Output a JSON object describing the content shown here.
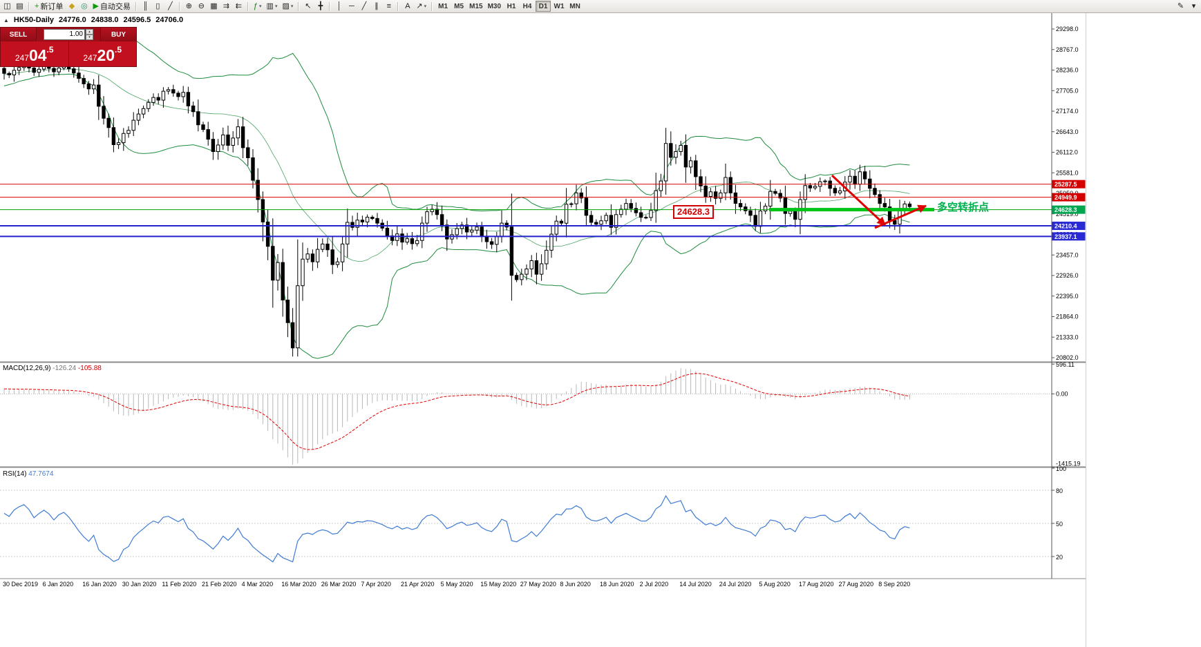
{
  "header": {
    "symbol": "HK50-Daily",
    "open": "24776.0",
    "high": "24838.0",
    "low": "24596.5",
    "close": "24706.0"
  },
  "trade_panel": {
    "collapse_icon": "▲",
    "sell_label": "SELL",
    "buy_label": "BUY",
    "volume": "1.00",
    "spin_up": "▴",
    "spin_down": "▾",
    "sell_price": "24704.5",
    "buy_price": "24720.5"
  },
  "toolbar": {
    "dropdown_glyph": "▾",
    "left_items": [
      {
        "name": "new-chart",
        "glyph": "◫"
      },
      {
        "name": "profiles",
        "glyph": "▤"
      },
      {
        "name": "sep"
      },
      {
        "name": "new-order",
        "glyph": "+",
        "label": "新订单",
        "glyph_color": "#0a9a0a"
      },
      {
        "name": "metaeditor",
        "glyph": "◆",
        "glyph_color": "#c9a11a"
      },
      {
        "name": "strategy-tester",
        "glyph": "◎",
        "glyph_color": "#2a8f6a"
      },
      {
        "name": "autotrading",
        "glyph": "▶",
        "label": "自动交易",
        "glyph_color": "#0a9a0a"
      },
      {
        "name": "sep"
      },
      {
        "name": "chart-bars",
        "glyph": "║"
      },
      {
        "name": "chart-candles",
        "glyph": "▯"
      },
      {
        "name": "chart-line",
        "glyph": "╱"
      },
      {
        "name": "sep"
      },
      {
        "name": "zoom-in",
        "glyph": "⊕"
      },
      {
        "name": "zoom-out",
        "glyph": "⊖"
      },
      {
        "name": "tile-windows",
        "glyph": "▦"
      },
      {
        "name": "auto-scroll",
        "glyph": "⇉"
      },
      {
        "name": "chart-shift",
        "glyph": "⇇"
      },
      {
        "name": "sep"
      },
      {
        "name": "indicators",
        "glyph": "ƒ",
        "glyph_color": "#0a7a0a",
        "dropdown": true
      },
      {
        "name": "periods",
        "glyph": "▥",
        "dropdown": true
      },
      {
        "name": "templates",
        "glyph": "▨",
        "dropdown": true
      },
      {
        "name": "sep"
      },
      {
        "name": "cursor",
        "glyph": "↖"
      },
      {
        "name": "crosshair",
        "glyph": "╋"
      },
      {
        "name": "sep"
      },
      {
        "name": "vertical-line",
        "glyph": "│"
      },
      {
        "name": "horizontal-line",
        "glyph": "─"
      },
      {
        "name": "trendline",
        "glyph": "╱"
      },
      {
        "name": "equidistant-channel",
        "glyph": "∥"
      },
      {
        "name": "fibonacci",
        "glyph": "≡"
      },
      {
        "name": "sep"
      },
      {
        "name": "text-tool",
        "glyph": "A"
      },
      {
        "name": "arrows-tool",
        "glyph": "↗",
        "dropdown": true
      },
      {
        "name": "sep"
      }
    ],
    "timeframes": [
      "M1",
      "M5",
      "M15",
      "M30",
      "H1",
      "H4",
      "D1",
      "W1",
      "MN"
    ],
    "active_timeframe": "D1",
    "right_items": [
      {
        "name": "edit-toolbar",
        "glyph": "✎"
      },
      {
        "name": "more-tools",
        "glyph": "▾"
      }
    ]
  },
  "annotations": {
    "turning_point_text": "多空转折点",
    "turning_point_color": "#00b050",
    "price_box": "24628.3",
    "price_box_color": "#d00000",
    "arrow_color": "#e00000",
    "thick_line_color": "#00c317"
  },
  "chart_data": {
    "type": "candlestick",
    "symbol": "HK50",
    "timeframe": "Daily",
    "title": "HK50-Daily 24776.0 24838.0 24596.5 24706.0",
    "last_high": 24838.0,
    "last_low": 24596.5,
    "y_ticks": [
      "29298.0",
      "28767.0",
      "28236.0",
      "27705.0",
      "27174.0",
      "26643.0",
      "26112.0",
      "25581.0",
      "25050.0",
      "24519.0",
      "23988.0",
      "23457.0",
      "22926.0",
      "22395.0",
      "21864.0",
      "21333.0",
      "20802.0"
    ],
    "x_dates": [
      "30 Dec 2019",
      "6 Jan 2020",
      "16 Jan 2020",
      "30 Jan 2020",
      "11 Feb 2020",
      "21 Feb 2020",
      "4 Mar 2020",
      "16 Mar 2020",
      "26 Mar 2020",
      "7 Apr 2020",
      "21 Apr 2020",
      "5 May 2020",
      "15 May 2020",
      "27 May 2020",
      "8 Jun 2020",
      "18 Jun 2020",
      "2 Jul 2020",
      "14 Jul 2020",
      "24 Jul 2020",
      "5 Aug 2020",
      "17 Aug 2020",
      "27 Aug 2020",
      "8 Sep 2020"
    ],
    "warmup_closes": [
      27830,
      27870,
      27910,
      27860,
      27950,
      28010,
      27960,
      28060,
      28120,
      28080,
      28140,
      28190,
      28240,
      28180,
      28230,
      28280,
      28240,
      28300,
      28350,
      28280
    ],
    "closes": [
      28150,
      28110,
      28230,
      28300,
      28350,
      28290,
      28180,
      28260,
      28330,
      28280,
      28190,
      28290,
      28340,
      28270,
      28160,
      28020,
      27880,
      27750,
      27850,
      27300,
      26990,
      26750,
      26310,
      26360,
      26600,
      26680,
      26940,
      27100,
      27240,
      27400,
      27530,
      27460,
      27690,
      27730,
      27640,
      27550,
      27660,
      27310,
      27160,
      26820,
      26700,
      26450,
      26130,
      26300,
      26560,
      26290,
      26480,
      26770,
      26230,
      25970,
      25390,
      24890,
      24310,
      23680,
      22805,
      23263,
      22292,
      21709,
      21054,
      22663,
      23350,
      23484,
      23280,
      23603,
      23740,
      23590,
      23210,
      23280,
      23740,
      24300,
      24170,
      24360,
      24310,
      24435,
      24400,
      24280,
      24150,
      23950,
      23830,
      24000,
      23790,
      23880,
      23750,
      23830,
      24280,
      24575,
      24640,
      24500,
      24230,
      23870,
      23980,
      24140,
      24230,
      24050,
      24100,
      24180,
      23940,
      23800,
      23730,
      23930,
      24280,
      24180,
      22930,
      22820,
      22960,
      23095,
      23310,
      22961,
      23230,
      23580,
      23995,
      24330,
      24280,
      24770,
      24780,
      25060,
      24930,
      24480,
      24300,
      24250,
      24340,
      24480,
      24170,
      24500,
      24640,
      24790,
      24660,
      24550,
      24430,
      24427,
      24610,
      25120,
      25370,
      26340,
      25980,
      26130,
      26290,
      25730,
      25890,
      25480,
      25240,
      24970,
      25090,
      24920,
      25060,
      25460,
      25060,
      24790,
      24700,
      24600,
      24480,
      24195,
      24595,
      24720,
      25100,
      25050,
      24930,
      24530,
      24590,
      24380,
      24890,
      25250,
      25190,
      25230,
      25350,
      25370,
      25180,
      25060,
      25114,
      25340,
      25490,
      25285,
      25608,
      25422,
      25180,
      25020,
      24790,
      24700,
      24350,
      24250,
      24630,
      24776,
      24706
    ],
    "bollinger": {
      "period": 20,
      "deviation": 2,
      "color": "#1e8c3c"
    },
    "levels": [
      {
        "price": 25287.5,
        "label": "25287.5",
        "color": "#d40000",
        "badge_bg": "#d40000",
        "width": 1
      },
      {
        "price": 24949.9,
        "label": "24949.9",
        "color": "#d40000",
        "badge_bg": "#d40000",
        "width": 1
      },
      {
        "price": 24628.3,
        "label": "24628.3",
        "color": "#00a000",
        "badge_bg": "#00a64f",
        "width": 1,
        "thick_segment": true
      },
      {
        "price": 24210.4,
        "label": "24210.4",
        "color": "#2222cc",
        "badge_bg": "#2a2ad4",
        "width": 2
      },
      {
        "price": 23937.1,
        "label": "23937.1",
        "color": "#2222cc",
        "badge_bg": "#2a2ad4",
        "width": 2
      }
    ],
    "macd": {
      "label": "MACD(12,26,9)",
      "value1": "-126.24",
      "value2": "-105.88",
      "axis": [
        "596.11",
        "0.00",
        "-1415.19"
      ],
      "hist_color": "#b8b8b8",
      "signal_color": "#e00000"
    },
    "rsi": {
      "label": "RSI(14)",
      "value": "47.7674",
      "axis": [
        "100",
        "80",
        "50",
        "20"
      ],
      "levels": [
        80,
        50,
        20
      ],
      "color": "#3e7bd4"
    }
  }
}
